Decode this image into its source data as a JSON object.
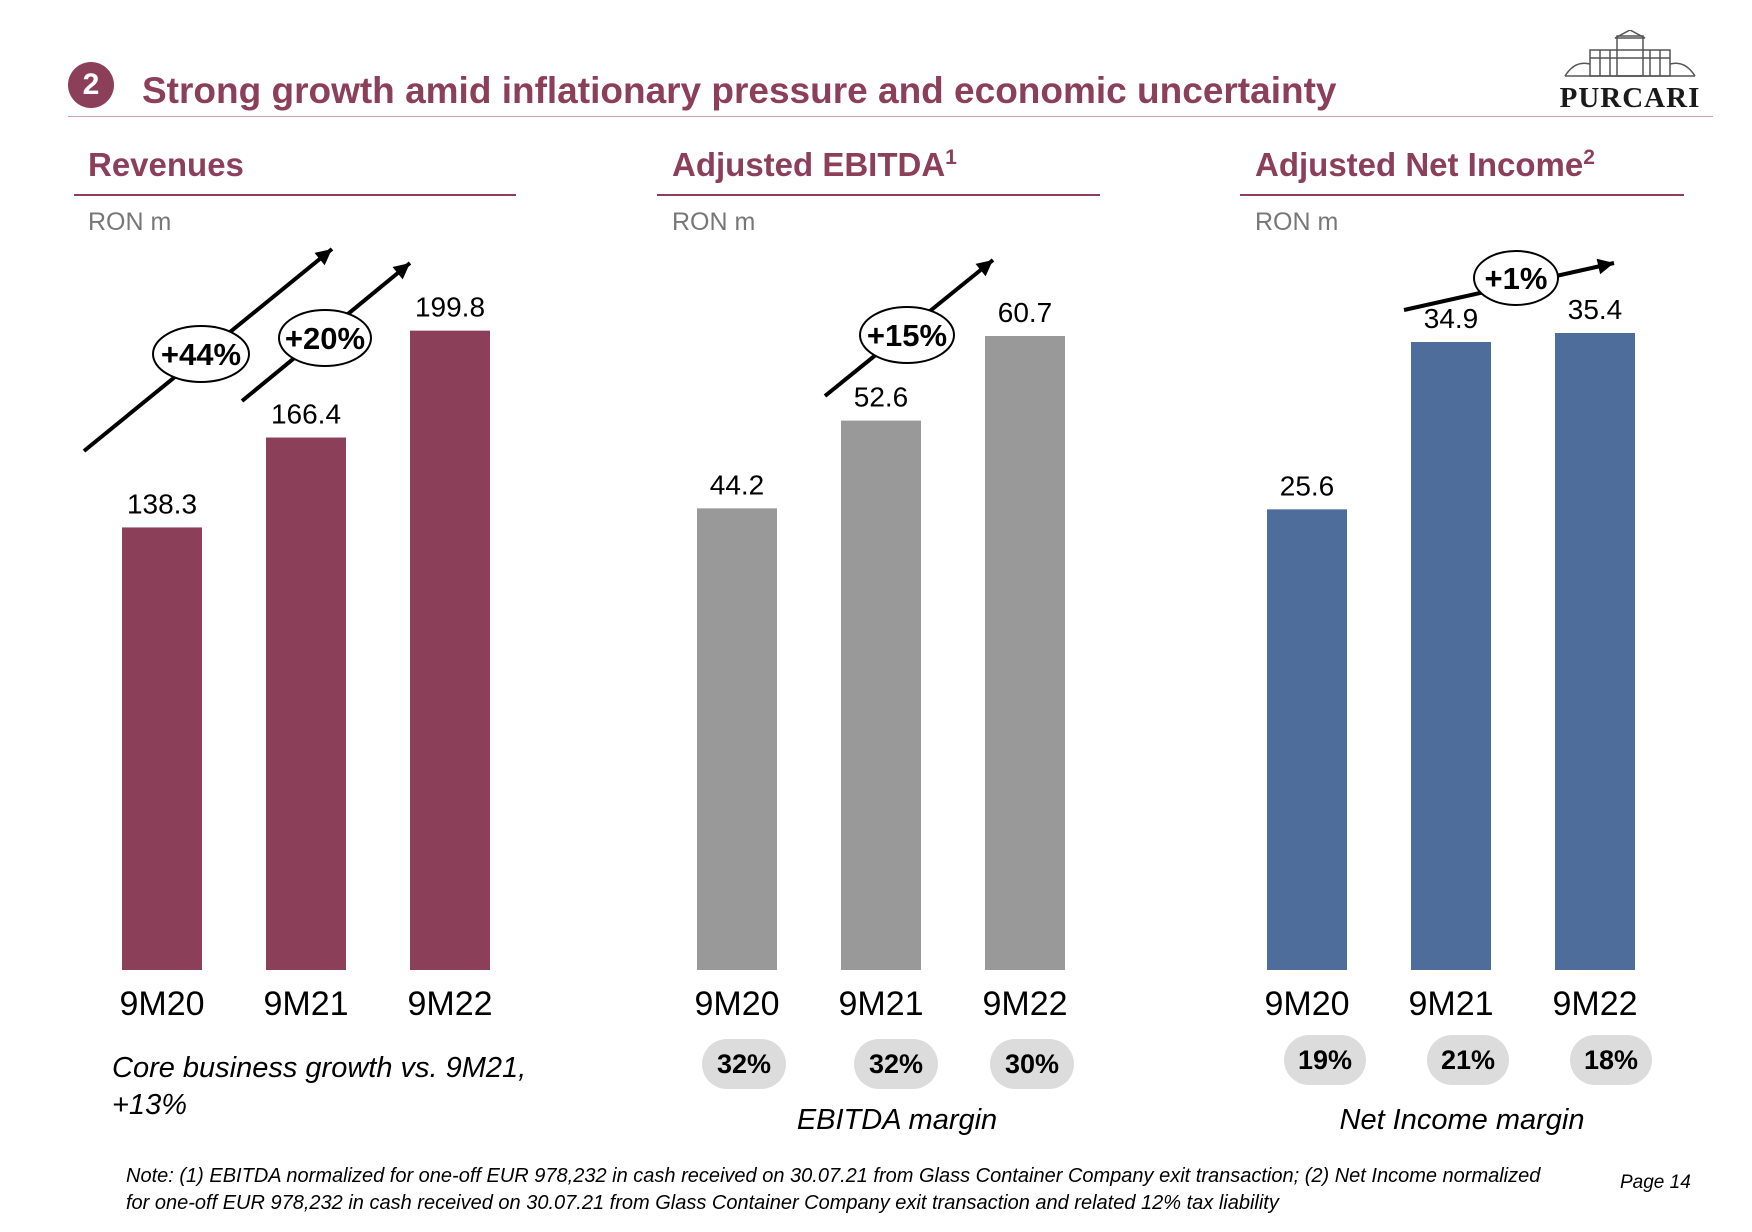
{
  "header": {
    "badge": "2",
    "title": "Strong growth amid inflationary pressure and economic uncertainty",
    "logo_text": "PURCARI"
  },
  "panels": [
    {
      "title": "Revenues",
      "superscript": "",
      "unit": "RON m",
      "color": "#8c3f58",
      "growth": [
        "+44%",
        "+20%"
      ],
      "note": "Core business growth vs. 9M21, +13%"
    },
    {
      "title": "Adjusted EBITDA",
      "superscript": "1",
      "unit": "RON m",
      "color": "#999999",
      "growth": [
        "+15%"
      ],
      "margins": [
        "32%",
        "32%",
        "30%"
      ],
      "margin_caption": "EBITDA margin"
    },
    {
      "title": "Adjusted Net Income",
      "superscript": "2",
      "unit": "RON m",
      "color": "#4f6d9b",
      "growth": [
        "+1%"
      ],
      "margins": [
        "19%",
        "21%",
        "18%"
      ],
      "margin_caption": "Net Income margin"
    }
  ],
  "chart_data": [
    {
      "type": "bar",
      "title": "Revenues",
      "ylabel": "RON m",
      "categories": [
        "9M20",
        "9M21",
        "9M22"
      ],
      "values": [
        138.3,
        166.4,
        199.8
      ],
      "value_labels": [
        "138.3",
        "166.4",
        "199.8"
      ],
      "color": "#8c3f58",
      "ylim": [
        0,
        200
      ],
      "grid": false
    },
    {
      "type": "bar",
      "title": "Adjusted EBITDA",
      "ylabel": "RON m",
      "categories": [
        "9M20",
        "9M21",
        "9M22"
      ],
      "values": [
        44.2,
        52.6,
        60.7
      ],
      "value_labels": [
        "44.2",
        "52.6",
        "60.7"
      ],
      "color": "#999999",
      "ylim": [
        0,
        60.7
      ],
      "grid": false
    },
    {
      "type": "bar",
      "title": "Adjusted Net Income",
      "ylabel": "RON m",
      "categories": [
        "9M20",
        "9M21",
        "9M22"
      ],
      "values": [
        25.6,
        34.9,
        35.4
      ],
      "value_labels": [
        "25.6",
        "34.9",
        "35.4"
      ],
      "color": "#4f6d9b",
      "ylim": [
        0,
        35.4
      ],
      "grid": false
    }
  ],
  "footer": {
    "note": "Note: (1) EBITDA  normalized for one-off EUR 978,232 in cash received on 30.07.21 from Glass Container Company exit transaction; (2) Net Income normalized for one-off EUR 978,232 in cash received on 30.07.21 from Glass Container Company exit transaction and related 12% tax liability",
    "page": "Page 14"
  }
}
